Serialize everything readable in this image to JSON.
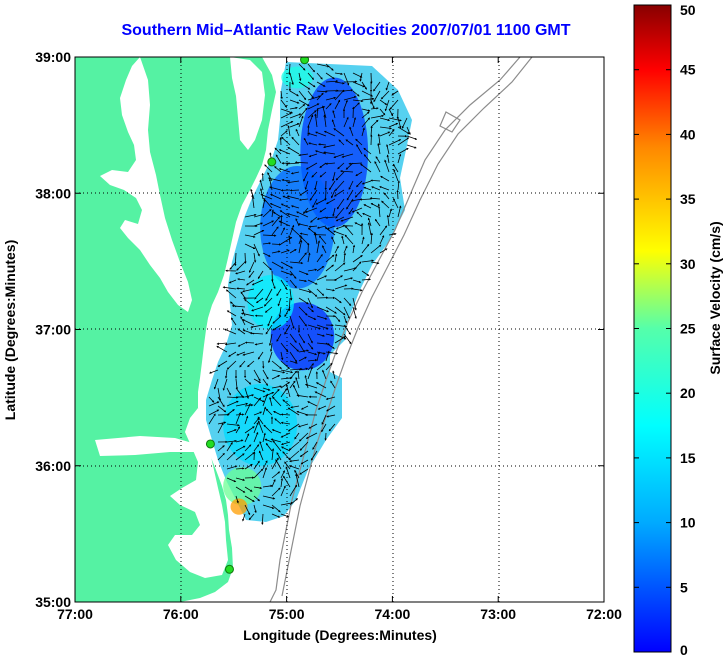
{
  "title": "Southern Mid–Atlantic Raw Velocities 2007/07/01 1100 GMT",
  "x_axis": {
    "label": "Longitude (Degrees:Minutes)",
    "ticks": [
      {
        "value": -77,
        "label": "77:00"
      },
      {
        "value": -76,
        "label": "76:00"
      },
      {
        "value": -75,
        "label": "75:00"
      },
      {
        "value": -74,
        "label": "74:00"
      },
      {
        "value": -73,
        "label": "73:00"
      },
      {
        "value": -72,
        "label": "72:00"
      }
    ],
    "range": [
      -77,
      -72
    ]
  },
  "y_axis": {
    "label": "Latitude (Degrees:Minutes)",
    "ticks": [
      {
        "value": 39,
        "label": "39:00"
      },
      {
        "value": 38,
        "label": "38:00"
      },
      {
        "value": 37,
        "label": "37:00"
      },
      {
        "value": 36,
        "label": "36:00"
      },
      {
        "value": 35,
        "label": "35:00"
      }
    ],
    "range": [
      35,
      39
    ]
  },
  "colorbar": {
    "label": "Surface Velocity (cm/s)",
    "range": [
      0,
      50
    ],
    "ticks": [
      {
        "value": 0,
        "label": "0"
      },
      {
        "value": 5,
        "label": "5"
      },
      {
        "value": 10,
        "label": "10"
      },
      {
        "value": 15,
        "label": "15"
      },
      {
        "value": 20,
        "label": "20"
      },
      {
        "value": 25,
        "label": "25"
      },
      {
        "value": 30,
        "label": "30"
      },
      {
        "value": 35,
        "label": "35"
      },
      {
        "value": 40,
        "label": "40"
      },
      {
        "value": 45,
        "label": "45"
      },
      {
        "value": 50,
        "label": "50"
      }
    ]
  },
  "colors": {
    "land": "#55f2a3",
    "title": "#0000ff",
    "bathymetry": "#8c8c8c",
    "station": "#22dd22"
  },
  "stations": [
    {
      "lon": -74.83,
      "lat": 38.98
    },
    {
      "lon": -75.14,
      "lat": 38.23
    },
    {
      "lon": -75.72,
      "lat": 36.16
    },
    {
      "lon": -75.54,
      "lat": 35.24
    }
  ],
  "velocity_blobs": [
    {
      "lon": -74.55,
      "lat": 38.3,
      "rlon": 0.32,
      "rlat": 0.55,
      "speed": 9
    },
    {
      "lon": -74.9,
      "lat": 37.75,
      "rlon": 0.35,
      "rlat": 0.45,
      "speed": 11
    },
    {
      "lon": -74.85,
      "lat": 36.95,
      "rlon": 0.3,
      "rlat": 0.25,
      "speed": 8
    },
    {
      "lon": -75.25,
      "lat": 36.3,
      "rlon": 0.35,
      "rlat": 0.3,
      "speed": 17
    },
    {
      "lon": -75.42,
      "lat": 35.85,
      "rlon": 0.18,
      "rlat": 0.14,
      "speed": 24
    },
    {
      "lon": -75.45,
      "lat": 35.7,
      "rlon": 0.08,
      "rlat": 0.06,
      "speed": 36
    },
    {
      "lon": -74.9,
      "lat": 38.85,
      "rlon": 0.15,
      "rlat": 0.08,
      "speed": 20
    },
    {
      "lon": -75.15,
      "lat": 37.2,
      "rlon": 0.22,
      "rlat": 0.2,
      "speed": 18
    }
  ]
}
